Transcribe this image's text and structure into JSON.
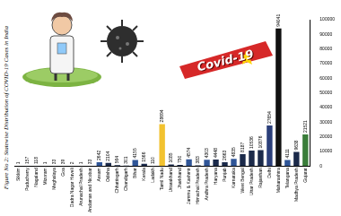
{
  "chart_data": {
    "type": "bar",
    "title": "Figure No 2: Statewise Distribution of COVID-19 Cases in India",
    "annotations": [
      "Covid-19"
    ],
    "categories": [
      "Sikkim",
      "Puducherry",
      "Nagaland",
      "Mizoram",
      "Meghalaya",
      "Goa",
      "Dadra Nagar Haveli",
      "Arunachal Pradesh",
      "Andaman and Nicobar",
      "Assam",
      "Odisha",
      "Chhattisgarh",
      "Chandigarh",
      "Bihar",
      "Kerala",
      "Ladakh",
      "Tamil Nadu",
      "Uttarakhand",
      "Jharkhand",
      "Jammu & Kashmir",
      "Himachal Pradesh",
      "Andhra Pradesh",
      "Haryana",
      "Punjab",
      "Karnataka",
      "West Bengal",
      "Uttar Pradesh",
      "Rajasthan",
      "Delhi",
      "Maharashtra",
      "Telangana",
      "Madhya Pradesh",
      "Gujarat"
    ],
    "values": [
      1,
      157,
      118,
      1,
      33,
      39,
      2,
      1,
      33,
      2642,
      2104,
      564,
      301,
      4155,
      1566,
      110,
      28694,
      1085,
      750,
      4574,
      383,
      4303,
      4448,
      2663,
      4835,
      8187,
      10536,
      10876,
      27654,
      94041,
      4111,
      9638,
      21521
    ],
    "colors": [
      "#1b2a4a",
      "#1b2a4a",
      "#1b2a4a",
      "#1b2a4a",
      "#1b2a4a",
      "#1b2a4a",
      "#1b2a4a",
      "#1b2a4a",
      "#1b2a4a",
      "#2f5597",
      "#1b2a4a",
      "#1b2a4a",
      "#1b2a4a",
      "#2f5597",
      "#1b2a4a",
      "#1b2a4a",
      "#f2c230",
      "#1b2a4a",
      "#1b2a4a",
      "#2f5597",
      "#1b2a4a",
      "#2f5597",
      "#1b2a4a",
      "#1b2a4a",
      "#2f5597",
      "#1b2a4a",
      "#1b2a4a",
      "#1b2a4a",
      "#2b3f7a",
      "#111111",
      "#2f5597",
      "#1b2a4a",
      "#3a7d3a"
    ],
    "ylim": [
      0,
      100000
    ],
    "yticks": [
      0,
      10000,
      20000,
      30000,
      40000,
      50000,
      60000,
      70000,
      80000,
      90000,
      100000
    ],
    "grid": false,
    "data_labels": true
  }
}
